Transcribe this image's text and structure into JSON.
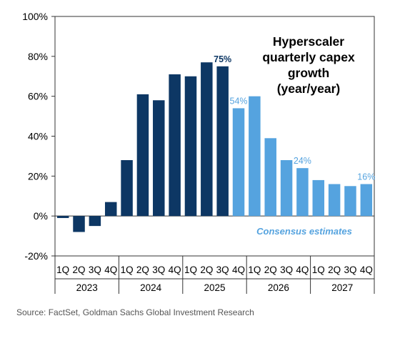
{
  "chart_data": {
    "type": "bar",
    "title": "Hyperscaler quarterly capex growth (year/year)",
    "title_lines": [
      "Hyperscaler",
      "quarterly capex",
      "growth",
      "(year/year)"
    ],
    "categories": [
      "1Q",
      "2Q",
      "3Q",
      "4Q",
      "1Q",
      "2Q",
      "3Q",
      "4Q",
      "1Q",
      "2Q",
      "3Q",
      "4Q",
      "1Q",
      "2Q",
      "3Q",
      "4Q",
      "1Q",
      "2Q",
      "3Q",
      "4Q"
    ],
    "years": [
      "2023",
      "2024",
      "2025",
      "2026",
      "2027"
    ],
    "values": [
      -1,
      -8,
      -5,
      7,
      28,
      61,
      58,
      71,
      70,
      77,
      75,
      54,
      60,
      39,
      28,
      24,
      18,
      16,
      15,
      16
    ],
    "actual_count": 11,
    "ylim": [
      -20,
      100
    ],
    "yticks": [
      -20,
      0,
      20,
      40,
      60,
      80,
      100
    ],
    "ytick_labels": [
      "-20%",
      "0%",
      "20%",
      "40%",
      "60%",
      "80%",
      "100%"
    ],
    "data_labels": [
      {
        "index": 10,
        "text": "75%"
      },
      {
        "index": 11,
        "text": "54%"
      },
      {
        "index": 15,
        "text": "24%"
      },
      {
        "index": 19,
        "text": "16%"
      }
    ],
    "annotation": "Consensus estimates",
    "colors": {
      "actual": "#0d3764",
      "estimate": "#55a3df",
      "axis": "#333333",
      "text": "#000000"
    }
  },
  "source": "Source: FactSet, Goldman Sachs Global Investment Research"
}
